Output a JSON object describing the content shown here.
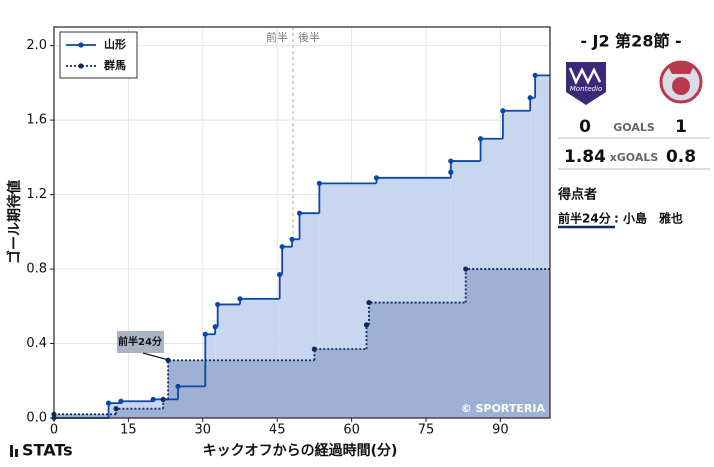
{
  "chart_data": {
    "type": "step",
    "x_label": "キックオフからの経過時間(分)",
    "y_label": "ゴール期待値",
    "xlim": [
      0,
      100
    ],
    "ylim": [
      0,
      2.1
    ],
    "xticks": [
      0,
      15,
      30,
      45,
      60,
      75,
      90
    ],
    "yticks": [
      {
        "value": 0,
        "label": "0.0"
      },
      {
        "value": 0.4,
        "label": "0.4"
      },
      {
        "value": 0.8,
        "label": "0.8"
      },
      {
        "value": 1.2,
        "label": "1.2"
      },
      {
        "value": 1.6,
        "label": "1.6"
      },
      {
        "value": 2.0,
        "label": "2.0"
      }
    ],
    "grid": true,
    "legend": "upper left",
    "half_labels": [
      "前半",
      "後半"
    ],
    "annotation": "前半24分",
    "credit": "© SPORTERIA",
    "series": [
      {
        "name": "山形",
        "color": "#0b47a8",
        "fill": "#c9d6f0",
        "dash": false,
        "x": [
          0,
          11,
          13.5,
          20,
          25,
          30.5,
          32.5,
          33,
          37.5,
          45.5,
          46,
          48,
          49.5,
          53.5,
          65,
          80,
          80,
          86,
          90.5,
          96,
          97
        ],
        "values": [
          0,
          0.08,
          0.09,
          0.1,
          0.17,
          0.45,
          0.49,
          0.61,
          0.64,
          0.77,
          0.92,
          0.96,
          1.1,
          1.26,
          1.29,
          1.32,
          1.38,
          1.5,
          1.65,
          1.72,
          1.84
        ]
      },
      {
        "name": "群馬",
        "color": "#0d2b5e",
        "fill": "#9eb0d4",
        "dash": true,
        "x": [
          0,
          12.5,
          22,
          23,
          52.5,
          63,
          63.5,
          83
        ],
        "values": [
          0.02,
          0.05,
          0.1,
          0.31,
          0.37,
          0.5,
          0.62,
          0.8
        ]
      }
    ]
  },
  "sidebar": {
    "round": "- J2 第28節 -",
    "home_logo_text": "Montedio",
    "home_goals": 0,
    "goals_label": "GOALS",
    "away_goals": 1,
    "home_xg": 1.84,
    "xg_label": "xGOALS",
    "away_xg": 0.8,
    "scorers_title": "得点者",
    "scorer_time": "前半24分",
    "scorer_name": ": 小島　雅也"
  },
  "footer": {
    "brand": "STATs"
  }
}
